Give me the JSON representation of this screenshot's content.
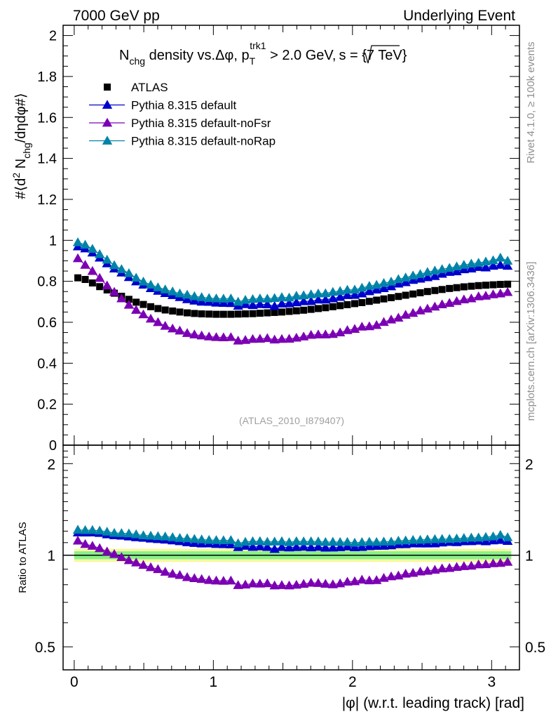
{
  "header": {
    "left": "7000 GeV pp",
    "right": "Underlying Event"
  },
  "side": {
    "rivet": "Rivet 4.1.0, ≥ 100k events",
    "mcplots": "mcplots.cern.ch [arXiv:1306.3436]"
  },
  "colors": {
    "atlas": "#000000",
    "default": "#0000cc",
    "noFsr": "#7b00b4",
    "noRap": "#0083a8",
    "band_green": "#88f088",
    "band_yellow": "#f8f8a0"
  },
  "chart_data": {
    "type": "scatter",
    "title": "N_chg density vs.Δφ, p_T^trk1 > 2.0 GeV, √s = {7 TeV}",
    "title_parts": {
      "n": "N",
      "chg": "chg",
      "mid": " density vs.Δφ, p",
      "T": "T",
      "trk1": "trk1",
      "gev": " > 2.0 GeV,",
      "s": "s = {7 TeV}"
    },
    "watermark": "(ATLAS_2010_I879407)",
    "ylabel_main": "#⟨d² N_chg/dηdφ#⟩",
    "ylabel_parts": {
      "a": "#⟨d",
      "sup2": "2",
      "b": " N",
      "chg": "chg",
      "c": "/dηdφ#⟩"
    },
    "ylabel_ratio": "Ratio to ATLAS",
    "xlabel": "|φ| (w.r.t. leading track) [rad]",
    "xlim": [
      -0.08,
      3.2
    ],
    "ylim_main": [
      0,
      2.05
    ],
    "ylim_ratio": [
      0.42,
      2.3
    ],
    "x_ticks": [
      "0",
      "1",
      "2",
      "3"
    ],
    "y_ticks_main": [
      "0",
      "0.2",
      "0.4",
      "0.6",
      "0.8",
      "1",
      "1.2",
      "1.4",
      "1.6",
      "1.8",
      "2"
    ],
    "y_ticks_ratio": [
      "0.5",
      "1",
      "2"
    ],
    "x": [
      0.026,
      0.079,
      0.131,
      0.183,
      0.236,
      0.288,
      0.34,
      0.393,
      0.445,
      0.497,
      0.55,
      0.602,
      0.654,
      0.707,
      0.759,
      0.812,
      0.864,
      0.916,
      0.969,
      1.021,
      1.073,
      1.126,
      1.178,
      1.23,
      1.283,
      1.335,
      1.388,
      1.44,
      1.492,
      1.545,
      1.597,
      1.649,
      1.702,
      1.754,
      1.806,
      1.859,
      1.911,
      1.963,
      2.016,
      2.068,
      2.121,
      2.173,
      2.225,
      2.278,
      2.33,
      2.382,
      2.435,
      2.487,
      2.539,
      2.592,
      2.644,
      2.697,
      2.749,
      2.801,
      2.854,
      2.906,
      2.958,
      3.011,
      3.063,
      3.115
    ],
    "series": [
      {
        "name": "ATLAS",
        "marker": "square",
        "values": [
          0.817,
          0.809,
          0.792,
          0.774,
          0.758,
          0.742,
          0.727,
          0.712,
          0.698,
          0.687,
          0.676,
          0.667,
          0.66,
          0.655,
          0.65,
          0.646,
          0.643,
          0.641,
          0.64,
          0.639,
          0.639,
          0.639,
          0.64,
          0.641,
          0.642,
          0.644,
          0.646,
          0.648,
          0.65,
          0.653,
          0.656,
          0.659,
          0.663,
          0.667,
          0.671,
          0.676,
          0.681,
          0.686,
          0.691,
          0.696,
          0.702,
          0.708,
          0.714,
          0.72,
          0.726,
          0.732,
          0.738,
          0.744,
          0.75,
          0.755,
          0.76,
          0.765,
          0.769,
          0.773,
          0.776,
          0.779,
          0.781,
          0.783,
          0.785,
          0.786
        ]
      },
      {
        "name": "Pythia 8.315 default",
        "marker": "triangle",
        "values": [
          0.97,
          0.96,
          0.94,
          0.915,
          0.887,
          0.862,
          0.842,
          0.82,
          0.799,
          0.783,
          0.766,
          0.753,
          0.742,
          0.732,
          0.722,
          0.712,
          0.705,
          0.7,
          0.699,
          0.695,
          0.694,
          0.693,
          0.68,
          0.688,
          0.683,
          0.688,
          0.687,
          0.679,
          0.691,
          0.692,
          0.697,
          0.702,
          0.703,
          0.71,
          0.71,
          0.716,
          0.723,
          0.732,
          0.733,
          0.74,
          0.751,
          0.759,
          0.766,
          0.775,
          0.788,
          0.795,
          0.806,
          0.812,
          0.819,
          0.825,
          0.836,
          0.845,
          0.848,
          0.858,
          0.862,
          0.869,
          0.867,
          0.875,
          0.88,
          0.875
        ]
      },
      {
        "name": "Pythia 8.315 default-noFsr",
        "marker": "triangle",
        "values": [
          0.912,
          0.88,
          0.85,
          0.816,
          0.779,
          0.748,
          0.716,
          0.685,
          0.66,
          0.638,
          0.617,
          0.6,
          0.582,
          0.569,
          0.559,
          0.547,
          0.54,
          0.535,
          0.53,
          0.527,
          0.526,
          0.527,
          0.51,
          0.513,
          0.518,
          0.519,
          0.522,
          0.515,
          0.518,
          0.519,
          0.524,
          0.53,
          0.538,
          0.54,
          0.54,
          0.542,
          0.55,
          0.561,
          0.567,
          0.578,
          0.58,
          0.586,
          0.601,
          0.613,
          0.622,
          0.636,
          0.645,
          0.657,
          0.666,
          0.676,
          0.687,
          0.694,
          0.703,
          0.711,
          0.716,
          0.726,
          0.729,
          0.736,
          0.74,
          0.747
        ]
      },
      {
        "name": "Pythia 8.315 default-noRap",
        "marker": "triangle",
        "values": [
          0.99,
          0.978,
          0.958,
          0.932,
          0.905,
          0.878,
          0.859,
          0.839,
          0.817,
          0.798,
          0.783,
          0.77,
          0.76,
          0.75,
          0.74,
          0.734,
          0.727,
          0.722,
          0.718,
          0.716,
          0.715,
          0.716,
          0.7,
          0.709,
          0.713,
          0.716,
          0.715,
          0.718,
          0.722,
          0.72,
          0.729,
          0.731,
          0.736,
          0.74,
          0.741,
          0.748,
          0.752,
          0.758,
          0.759,
          0.768,
          0.777,
          0.782,
          0.791,
          0.798,
          0.81,
          0.818,
          0.828,
          0.835,
          0.845,
          0.852,
          0.859,
          0.865,
          0.872,
          0.88,
          0.886,
          0.89,
          0.896,
          0.902,
          0.915,
          0.9
        ]
      }
    ]
  }
}
